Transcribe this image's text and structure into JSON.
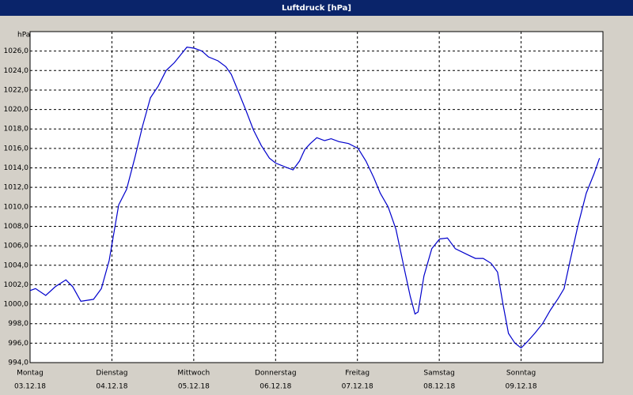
{
  "chart_data": {
    "type": "line",
    "title": "Luftdruck [hPa]",
    "y_label": "hPa",
    "xlim": [
      0,
      168
    ],
    "ylim": [
      994,
      1028
    ],
    "xticks": [
      {
        "value": 0,
        "label": "Montag"
      },
      {
        "value": 24,
        "label": "Dienstag"
      },
      {
        "value": 48,
        "label": "Mittwoch"
      },
      {
        "value": 72,
        "label": "Donnerstag"
      },
      {
        "value": 96,
        "label": "Freitag"
      },
      {
        "value": 120,
        "label": "Samstag"
      },
      {
        "value": 144,
        "label": "Sonntag"
      }
    ],
    "xtick_dates": [
      "03.12.18",
      "04.12.18",
      "05.12.18",
      "06.12.18",
      "07.12.18",
      "08.12.18",
      "09.12.18"
    ],
    "yticks": [
      {
        "value": 994,
        "label": "994,0"
      },
      {
        "value": 996,
        "label": "996,0"
      },
      {
        "value": 998,
        "label": "998,0"
      },
      {
        "value": 1000,
        "label": "1000,0"
      },
      {
        "value": 1002,
        "label": "1002,0"
      },
      {
        "value": 1004,
        "label": "1004,0"
      },
      {
        "value": 1006,
        "label": "1006,0"
      },
      {
        "value": 1008,
        "label": "1008,0"
      },
      {
        "value": 1010,
        "label": "1010,0"
      },
      {
        "value": 1012,
        "label": "1012,0"
      },
      {
        "value": 1014,
        "label": "1014,0"
      },
      {
        "value": 1016,
        "label": "1016,0"
      },
      {
        "value": 1018,
        "label": "1018,0"
      },
      {
        "value": 1020,
        "label": "1020,0"
      },
      {
        "value": 1022,
        "label": "1022,0"
      },
      {
        "value": 1024,
        "label": "1024,0"
      },
      {
        "value": 1026,
        "label": "1026,0"
      }
    ],
    "grid": true,
    "series": [
      {
        "color": "#0000cc",
        "x": [
          0,
          1.6,
          4.6,
          7.4,
          10.5,
          12.5,
          14.9,
          18.6,
          20.9,
          23.2,
          26.0,
          28.3,
          30.7,
          33.0,
          35.3,
          37.6,
          39.9,
          42.3,
          44.6,
          46.0,
          48.1,
          50.4,
          52.3,
          55.1,
          57.4,
          59.0,
          60.9,
          63.2,
          65.5,
          67.8,
          70.2,
          72.0,
          74.8,
          77.1,
          79.0,
          80.6,
          82.2,
          84.1,
          86.4,
          88.3,
          90.6,
          93.4,
          96.2,
          98.5,
          100.8,
          102.7,
          105.0,
          107.3,
          109.7,
          111.5,
          112.9,
          113.8,
          115.5,
          117.8,
          120.1,
          122.4,
          124.7,
          128.2,
          130.6,
          132.9,
          135.2,
          137.1,
          138.7,
          140.3,
          142.2,
          144.0,
          145.7,
          148.0,
          150.3,
          152.6,
          154.9,
          156.6,
          158.4,
          160.7,
          163.1,
          165.4,
          167.0
        ],
        "values": [
          1001.4,
          1001.6,
          1000.9,
          1001.8,
          1002.5,
          1001.8,
          1000.3,
          1000.5,
          1001.6,
          1004.5,
          1010.2,
          1011.8,
          1015,
          1018.3,
          1021.2,
          1022.4,
          1024,
          1024.8,
          1025.8,
          1026.4,
          1026.3,
          1026,
          1025.4,
          1025,
          1024.4,
          1023.6,
          1022,
          1020,
          1017.9,
          1016.3,
          1015,
          1014.5,
          1014.1,
          1013.8,
          1014.7,
          1015.9,
          1016.5,
          1017.1,
          1016.8,
          1017,
          1016.7,
          1016.5,
          1016,
          1014.7,
          1013,
          1011.4,
          1010,
          1007.7,
          1003.7,
          1000.8,
          999,
          999.2,
          1002.9,
          1005.7,
          1006.7,
          1006.8,
          1005.7,
          1005.1,
          1004.7,
          1004.7,
          1004.2,
          1003.3,
          1000,
          997,
          996,
          995.5,
          996.1,
          997,
          998,
          999.4,
          1000.6,
          1001.6,
          1004.5,
          1008.1,
          1011.4,
          1013.4,
          1015
        ]
      }
    ]
  }
}
